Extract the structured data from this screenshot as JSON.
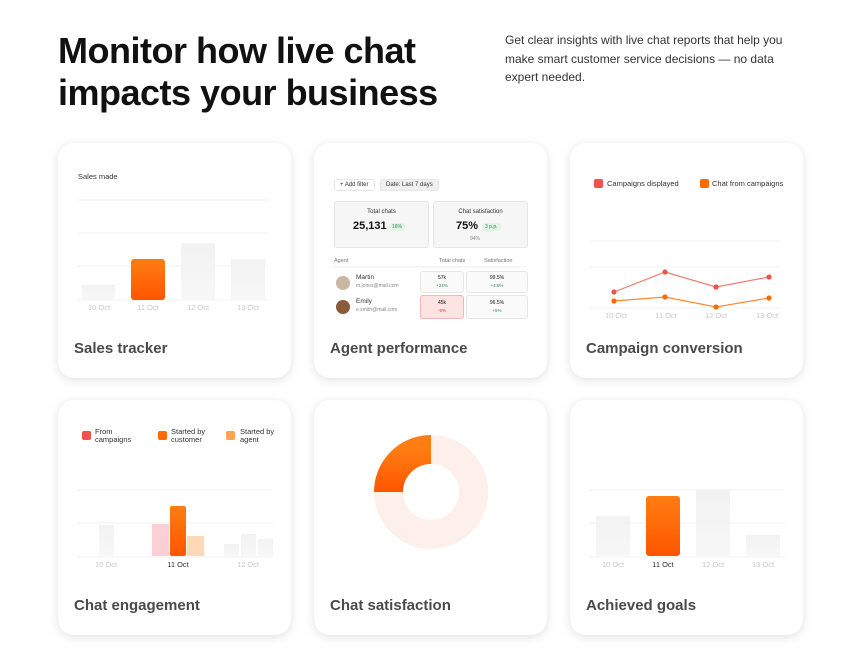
{
  "header": {
    "title_lines": [
      "Monitor how live chat",
      "impacts your business"
    ],
    "description_lines": [
      "Get clear insights with live chat reports that help you",
      "make smart customer service decisions — no data",
      "expert needed."
    ]
  },
  "cards": [
    {
      "title": "Sales tracker",
      "chart_label": "Sales made",
      "x_labels": [
        "10 Oct",
        "11 Oct",
        "12 Oct",
        "13 Oct"
      ]
    },
    {
      "title": "Agent performance",
      "filter_button": "Add filter",
      "date_button": "Date: Last 7 days",
      "kpis": [
        {
          "label": "Total chats",
          "value": "25,131",
          "change": "16%"
        },
        {
          "label": "Chat satisfaction",
          "value": "75%",
          "change": "3 p.p.",
          "note": "94%"
        }
      ],
      "table_headers": [
        "Agent",
        "Total chats",
        "Satisfaction"
      ],
      "agents": [
        {
          "name": "Martin",
          "email": "m.jones@mail.com",
          "chats": "57k",
          "chats_change": "+24%",
          "satisfaction": "99.5%",
          "satisfaction_change": "+4.5%"
        },
        {
          "name": "Emily",
          "email": "e.smith@mail.com",
          "chats": "45k",
          "chats_change": "-5%",
          "satisfaction": "96.5%",
          "satisfaction_change": "+5%"
        }
      ]
    },
    {
      "title": "Campaign conversion",
      "legend": [
        "Campaigns displayed",
        "Chat from campaigns"
      ],
      "x_labels": [
        "10 Oct",
        "11 Oct",
        "12 Oct",
        "13 Oct"
      ]
    },
    {
      "title": "Chat engagement",
      "legend": [
        "From campaigns",
        "Started by customer",
        "Started by agent"
      ],
      "x_labels": [
        "10 Oct",
        "11 Oct",
        "12 Oct"
      ]
    },
    {
      "title": "Chat satisfaction"
    },
    {
      "title": "Achieved goals",
      "x_labels": [
        "10 Oct",
        "11 Oct",
        "12 Oct",
        "13 Oct"
      ]
    }
  ]
}
